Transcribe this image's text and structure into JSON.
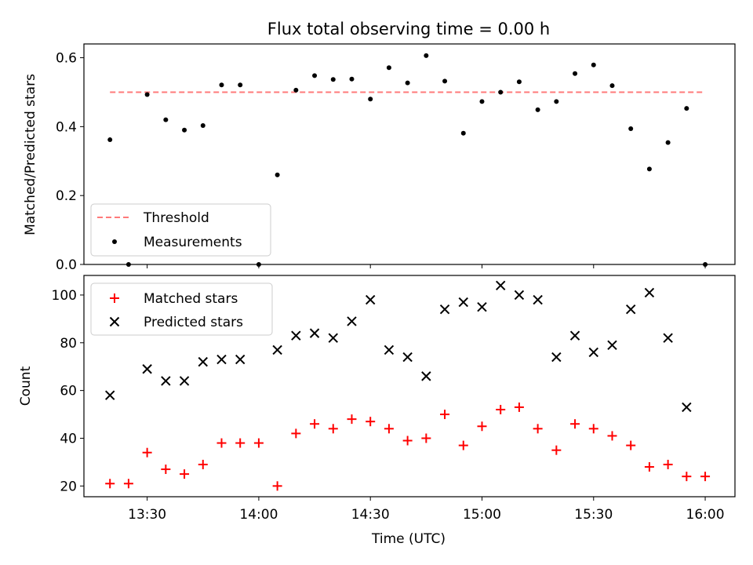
{
  "chart_data": [
    {
      "type": "scatter",
      "title": "Flux total observing time = 0.00 h",
      "xlabel": "",
      "ylabel": "Matched/Predicted stars",
      "ylim": [
        0,
        0.64
      ],
      "yticks": [
        0.0,
        0.2,
        0.4,
        0.6
      ],
      "ytick_labels": [
        "0.0",
        "0.2",
        "0.4",
        "0.6"
      ],
      "grid": false,
      "legend_position": "lower-left",
      "series": [
        {
          "name": "Threshold",
          "style": "dashed-line",
          "color": "#ff7a7a",
          "x": [
            "13:20",
            "16:00"
          ],
          "y": [
            0.5,
            0.5
          ]
        },
        {
          "name": "Measurements",
          "style": "dot",
          "color": "#000000",
          "x": [
            "13:20",
            "13:25",
            "13:30",
            "13:35",
            "13:40",
            "13:45",
            "13:50",
            "13:55",
            "14:00",
            "14:05",
            "14:10",
            "14:15",
            "14:20",
            "14:25",
            "14:30",
            "14:35",
            "14:40",
            "14:45",
            "14:50",
            "14:55",
            "15:00",
            "15:05",
            "15:10",
            "15:15",
            "15:20",
            "15:25",
            "15:30",
            "15:35",
            "15:40",
            "15:45",
            "15:50",
            "15:55",
            "16:00"
          ],
          "y": [
            0.362,
            0.0,
            0.493,
            0.42,
            0.39,
            0.403,
            0.521,
            0.521,
            0.0,
            0.26,
            0.506,
            0.548,
            0.537,
            0.538,
            0.48,
            0.571,
            0.527,
            0.606,
            0.532,
            0.381,
            0.473,
            0.5,
            0.53,
            0.449,
            0.473,
            0.554,
            0.579,
            0.519,
            0.394,
            0.277,
            0.354,
            0.453,
            0.0
          ]
        }
      ]
    },
    {
      "type": "scatter",
      "title": "",
      "xlabel": "Time (UTC)",
      "ylabel": "Count",
      "ylim": [
        15.5,
        108.2
      ],
      "yticks": [
        20,
        40,
        60,
        80,
        100
      ],
      "ytick_labels": [
        "20",
        "40",
        "60",
        "80",
        "100"
      ],
      "x_range": [
        "13:13",
        "16:08"
      ],
      "xticks": [
        "13:30",
        "14:00",
        "14:30",
        "15:00",
        "15:30",
        "16:00"
      ],
      "xtick_labels": [
        "13:30",
        "14:00",
        "14:30",
        "15:00",
        "15:30",
        "16:00"
      ],
      "grid": false,
      "legend_position": "upper-left",
      "series": [
        {
          "name": "Matched stars",
          "marker": "plus",
          "color": "#ff0000",
          "x": [
            "13:20",
            "13:25",
            "13:30",
            "13:35",
            "13:40",
            "13:45",
            "13:50",
            "13:55",
            "14:00",
            "14:05",
            "14:10",
            "14:15",
            "14:20",
            "14:25",
            "14:30",
            "14:35",
            "14:40",
            "14:45",
            "14:50",
            "14:55",
            "15:00",
            "15:05",
            "15:10",
            "15:15",
            "15:20",
            "15:25",
            "15:30",
            "15:35",
            "15:40",
            "15:45",
            "15:50",
            "15:55",
            "16:00"
          ],
          "y": [
            21,
            21,
            34,
            27,
            25,
            29,
            38,
            38,
            38,
            20,
            42,
            46,
            44,
            48,
            47,
            44,
            39,
            40,
            50,
            37,
            45,
            52,
            53,
            44,
            35,
            46,
            44,
            41,
            37,
            28,
            29,
            24,
            24
          ]
        },
        {
          "name": "Predicted stars",
          "marker": "x",
          "color": "#000000",
          "x": [
            "13:20",
            "13:30",
            "13:35",
            "13:40",
            "13:45",
            "13:50",
            "13:55",
            "14:05",
            "14:10",
            "14:15",
            "14:20",
            "14:25",
            "14:30",
            "14:35",
            "14:40",
            "14:45",
            "14:50",
            "14:55",
            "15:00",
            "15:05",
            "15:10",
            "15:15",
            "15:20",
            "15:25",
            "15:30",
            "15:35",
            "15:40",
            "15:45",
            "15:50",
            "15:55"
          ],
          "y": [
            58,
            69,
            64,
            64,
            72,
            73,
            73,
            77,
            83,
            84,
            82,
            89,
            98,
            77,
            74,
            66,
            94,
            97,
            95,
            104,
            100,
            98,
            74,
            83,
            76,
            79,
            94,
            101,
            82,
            53
          ]
        }
      ]
    }
  ]
}
